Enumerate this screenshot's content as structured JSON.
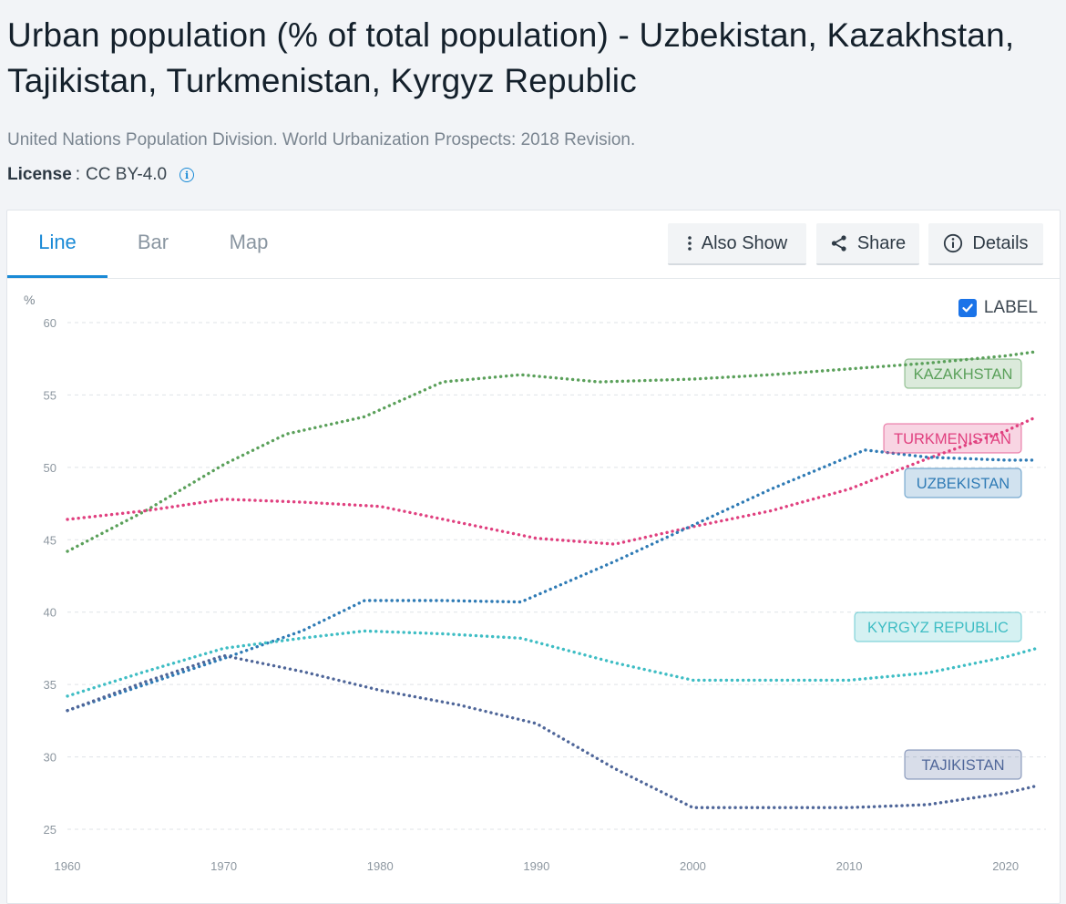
{
  "header": {
    "title": "Urban population (% of total population) - Uzbekistan, Kazakhstan, Tajikistan, Turkmenistan, Kyrgyz Republic",
    "source": "United Nations Population Division. World Urbanization Prospects: 2018 Revision.",
    "license_label": "License",
    "license_value": "CC BY-4.0"
  },
  "tabs": [
    {
      "label": "Line"
    },
    {
      "label": "Bar"
    },
    {
      "label": "Map"
    }
  ],
  "toolbar": {
    "also_show_label": "Also Show",
    "share_label": "Share",
    "details_label": "Details"
  },
  "label_toggle": {
    "label": "LABEL",
    "checked": true
  },
  "colors": {
    "accent": "#1a8ad6",
    "kazakhstan": "#5aa05a",
    "turkmenistan": "#e0407f",
    "uzbekistan": "#2f7bb5",
    "kyrgyz": "#3ebdc4",
    "tajikistan": "#4f6699"
  },
  "chart_data": {
    "type": "line",
    "title": "Urban population (% of total population)",
    "ylabel": "%",
    "xlabel": "",
    "ylim": [
      25,
      60
    ],
    "xlim": [
      1960,
      2022
    ],
    "yticks": [
      60,
      55,
      50,
      45,
      40,
      35,
      30,
      25
    ],
    "xticks": [
      1960,
      1970,
      1980,
      1990,
      2000,
      2010,
      2020
    ],
    "grid": true,
    "series": [
      {
        "key": "kazakhstan",
        "name": "KAZAKHSTAN",
        "x": [
          1960,
          1965,
          1970,
          1974,
          1979,
          1984,
          1989,
          1994,
          2000,
          2005,
          2010,
          2015,
          2020,
          2022
        ],
        "values": [
          44.2,
          47.0,
          50.2,
          52.3,
          53.5,
          55.9,
          56.4,
          55.9,
          56.1,
          56.4,
          56.8,
          57.2,
          57.7,
          58.0
        ]
      },
      {
        "key": "turkmenistan",
        "name": "TURKMENISTAN",
        "x": [
          1960,
          1965,
          1970,
          1975,
          1980,
          1985,
          1990,
          1995,
          2000,
          2005,
          2010,
          2015,
          2020,
          2022
        ],
        "values": [
          46.4,
          47.0,
          47.8,
          47.6,
          47.3,
          46.2,
          45.1,
          44.7,
          45.9,
          47.0,
          48.5,
          50.6,
          52.5,
          53.5
        ]
      },
      {
        "key": "uzbekistan",
        "name": "UZBEKISTAN",
        "x": [
          1960,
          1965,
          1970,
          1975,
          1979,
          1984,
          1989,
          1995,
          2000,
          2005,
          2011,
          2015,
          2020,
          2022
        ],
        "values": [
          33.2,
          35.0,
          36.8,
          38.7,
          40.8,
          40.8,
          40.7,
          43.5,
          46.0,
          48.5,
          51.2,
          50.7,
          50.5,
          50.5
        ]
      },
      {
        "key": "kyrgyz",
        "name": "KYRGYZ REPUBLIC",
        "x": [
          1960,
          1965,
          1970,
          1975,
          1979,
          1984,
          1989,
          1995,
          2000,
          2005,
          2010,
          2015,
          2020,
          2022
        ],
        "values": [
          34.2,
          35.9,
          37.5,
          38.2,
          38.7,
          38.5,
          38.2,
          36.5,
          35.3,
          35.3,
          35.3,
          35.8,
          36.9,
          37.5
        ]
      },
      {
        "key": "tajikistan",
        "name": "TAJIKISTAN",
        "x": [
          1960,
          1965,
          1970,
          1975,
          1980,
          1985,
          1990,
          1995,
          2000,
          2005,
          2010,
          2015,
          2020,
          2022
        ],
        "values": [
          33.2,
          35.2,
          37.0,
          35.9,
          34.6,
          33.6,
          32.3,
          29.2,
          26.5,
          26.5,
          26.5,
          26.7,
          27.5,
          28.0
        ]
      }
    ],
    "labels": [
      {
        "series": "kazakhstan",
        "text": "KAZAKHSTAN"
      },
      {
        "series": "turkmenistan",
        "text": "TURKMENISTAN"
      },
      {
        "series": "uzbekistan",
        "text": "UZBEKISTAN"
      },
      {
        "series": "kyrgyz",
        "text": "KYRGYZ REPUBLIC"
      },
      {
        "series": "tajikistan",
        "text": "TAJIKISTAN"
      }
    ]
  }
}
